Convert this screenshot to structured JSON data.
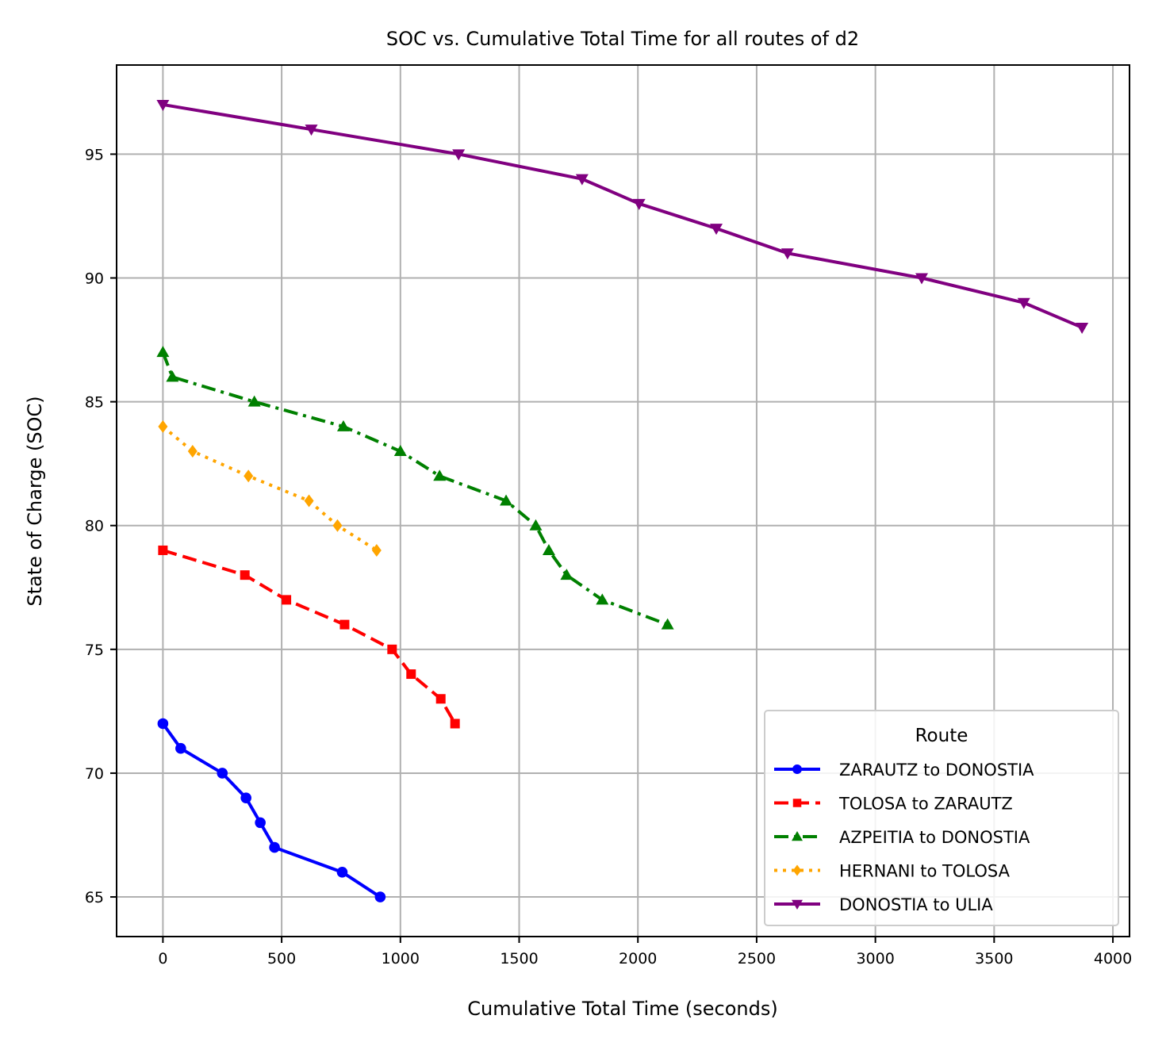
{
  "chart_data": {
    "type": "line",
    "title": "SOC vs. Cumulative Total Time for all routes of d2",
    "xlabel": "Cumulative Total Time (seconds)",
    "ylabel": "State of Charge (SOC)",
    "xlim": [
      -195,
      4070
    ],
    "ylim": [
      63.4,
      98.6
    ],
    "xticks": [
      0,
      500,
      1000,
      1500,
      2000,
      2500,
      3000,
      3500,
      4000
    ],
    "yticks": [
      65,
      70,
      75,
      80,
      85,
      90,
      95
    ],
    "grid": true,
    "legend": {
      "title": "Route",
      "position": "bottom-right"
    },
    "series": [
      {
        "name": "ZARAUTZ to DONOSTIA",
        "color": "#0000ff",
        "dash": "solid",
        "marker": "circle",
        "x": [
          0,
          75,
          250,
          350,
          410,
          470,
          755,
          915
        ],
        "y": [
          72,
          71,
          70,
          69,
          68,
          67,
          66,
          65
        ]
      },
      {
        "name": "TOLOSA to ZARAUTZ",
        "color": "#ff0000",
        "dash": "dashed",
        "marker": "square",
        "x": [
          0,
          345,
          520,
          765,
          965,
          1045,
          1170,
          1230
        ],
        "y": [
          79,
          78,
          77,
          76,
          75,
          74,
          73,
          72
        ]
      },
      {
        "name": "AZPEITIA to DONOSTIA",
        "color": "#008000",
        "dash": "dashdot",
        "marker": "triangle-up",
        "x": [
          0,
          40,
          385,
          760,
          1000,
          1165,
          1445,
          1570,
          1625,
          1700,
          1850,
          2125
        ],
        "y": [
          87,
          86,
          85,
          84,
          83,
          82,
          81,
          80,
          79,
          78,
          77,
          76
        ]
      },
      {
        "name": "HERNANI to TOLOSA",
        "color": "#ffa500",
        "dash": "dotted",
        "marker": "diamond",
        "x": [
          0,
          125,
          360,
          615,
          735,
          900
        ],
        "y": [
          84,
          83,
          82,
          81,
          80,
          79
        ]
      },
      {
        "name": "DONOSTIA to ULIA",
        "color": "#800080",
        "dash": "solid",
        "marker": "triangle-down",
        "x": [
          0,
          625,
          1245,
          1765,
          2005,
          2330,
          2630,
          3195,
          3625,
          3870
        ],
        "y": [
          97,
          96,
          95,
          94,
          93,
          92,
          91,
          90,
          89,
          88
        ]
      }
    ]
  }
}
